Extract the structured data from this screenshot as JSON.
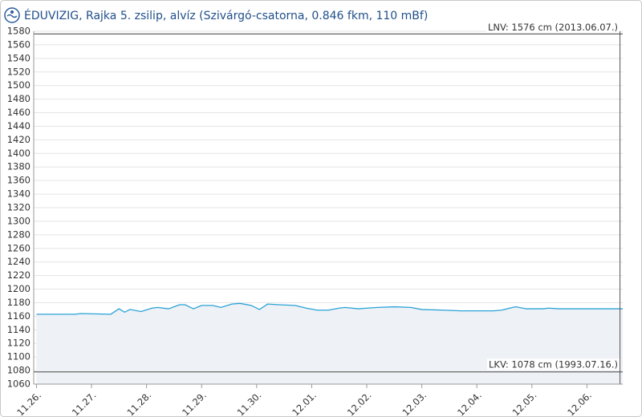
{
  "chart_data": {
    "type": "area-line",
    "title": "ÉDUVIZIG, Rajka 5. zsilip, alvíz (Szivárgó-csatorna, 0.846 fkm, 110 mBf)",
    "series": [
      {
        "color": "#29a3d6",
        "x": [
          0,
          0.7,
          0.8,
          1.35,
          1.5,
          1.6,
          1.7,
          1.9,
          2.1,
          2.2,
          2.4,
          2.6,
          2.7,
          2.85,
          3.0,
          3.2,
          3.35,
          3.55,
          3.7,
          3.9,
          4.05,
          4.2,
          4.4,
          4.7,
          4.9,
          5.1,
          5.3,
          5.5,
          5.6,
          5.85,
          6.0,
          6.2,
          6.5,
          6.8,
          7.0,
          7.4,
          7.7,
          8.3,
          8.45,
          8.7,
          8.9,
          9.2,
          9.3,
          9.5,
          10.0,
          10.65
        ],
        "values": [
          1163,
          1163,
          1164,
          1163,
          1171,
          1166,
          1170,
          1167,
          1172,
          1173,
          1171,
          1177,
          1177,
          1171,
          1176,
          1176,
          1173,
          1178,
          1179,
          1176,
          1170,
          1178,
          1177,
          1176,
          1172,
          1169,
          1169,
          1172,
          1173,
          1171,
          1172,
          1173,
          1174,
          1173,
          1170,
          1169,
          1168,
          1168,
          1169,
          1174,
          1171,
          1171,
          1172,
          1171,
          1171,
          1171
        ]
      }
    ],
    "xlim": [
      -0.05,
      10.65
    ],
    "xticks": [
      {
        "value": 0,
        "label": "11.26."
      },
      {
        "value": 1,
        "label": "11.27."
      },
      {
        "value": 2,
        "label": "11.28."
      },
      {
        "value": 3,
        "label": "11.29."
      },
      {
        "value": 4,
        "label": "11.30."
      },
      {
        "value": 5,
        "label": "12.01."
      },
      {
        "value": 6,
        "label": "12.02."
      },
      {
        "value": 7,
        "label": "12.03."
      },
      {
        "value": 8,
        "label": "12.04."
      },
      {
        "value": 9,
        "label": "12.05."
      },
      {
        "value": 10,
        "label": "12.06."
      }
    ],
    "ylim": [
      1060,
      1580
    ],
    "yticks": [
      1060,
      1080,
      1100,
      1120,
      1140,
      1160,
      1180,
      1200,
      1220,
      1240,
      1260,
      1280,
      1300,
      1320,
      1340,
      1360,
      1380,
      1400,
      1420,
      1440,
      1460,
      1480,
      1500,
      1520,
      1540,
      1560,
      1580
    ],
    "reference_lines": [
      {
        "value": 1576,
        "label": "LNV: 1576 cm (2013.06.07.)"
      },
      {
        "value": 1078,
        "label": "LKV: 1078 cm (1993.07.16.)"
      }
    ],
    "vline_x": 10.6,
    "grid": true
  }
}
